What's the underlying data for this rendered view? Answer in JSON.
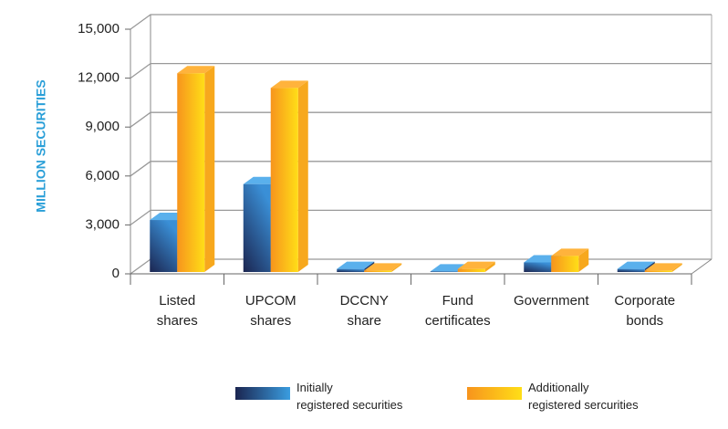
{
  "chart_data": {
    "type": "bar3d",
    "y_label": "MILLION SECURITIES",
    "categories": [
      "Listed shares",
      "UPCOM shares",
      "DCCNY share",
      "Fund certificates",
      "Government",
      "Corporate bonds"
    ],
    "series": [
      {
        "name": "Initially registered securities",
        "color": "#3a8fd6",
        "values": [
          3300,
          5500,
          300,
          150,
          700,
          300
        ]
      },
      {
        "name": "Additionally registered sercurities",
        "color": "#f7941d",
        "values": [
          12300,
          11400,
          200,
          300,
          1100,
          200
        ]
      }
    ],
    "ylim": [
      0,
      15000
    ],
    "yticks": [
      0,
      {
        "value": 3000,
        "label": "3,000"
      },
      {
        "value": 6000,
        "label": "6,000"
      },
      {
        "value": 9000,
        "label": "9,000"
      },
      {
        "value": 12000,
        "label": "12,000"
      },
      {
        "value": 15000,
        "label": "15,000"
      }
    ],
    "grid": true
  }
}
